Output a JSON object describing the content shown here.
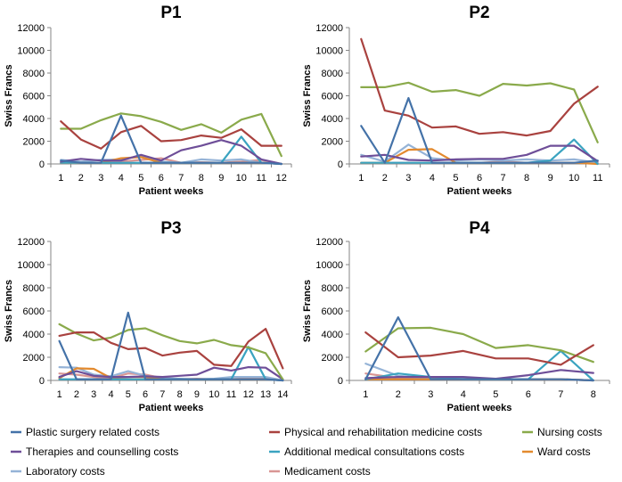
{
  "chart_data": {
    "type": "line",
    "ylabel": "Swiss Francs",
    "xlabel": "Patient weeks",
    "ylim": [
      0,
      12000
    ],
    "yticks": [
      "0",
      "2000",
      "4000",
      "6000",
      "8000",
      "10000",
      "12000"
    ],
    "grid": false,
    "legend_position": "bottom",
    "legend": [
      {
        "name": "Plastic surgery related costs",
        "color": "#4472A8"
      },
      {
        "name": "Physical and rehabilitation medicine costs",
        "color": "#A9423F"
      },
      {
        "name": "Nursing costs",
        "color": "#8AAA4B"
      },
      {
        "name": "Therapies and counselling costs",
        "color": "#6E4E98"
      },
      {
        "name": "Additional medical consultations costs",
        "color": "#3AA3C0"
      },
      {
        "name": "Ward costs",
        "color": "#E38A2E"
      },
      {
        "name": "Laboratory costs",
        "color": "#95B3D7"
      },
      {
        "name": "Medicament costs",
        "color": "#D99694"
      }
    ],
    "panels": [
      {
        "title": "P1",
        "x": [
          "1",
          "2",
          "3",
          "4",
          "5",
          "6",
          "7",
          "8",
          "9",
          "10",
          "11",
          "12"
        ],
        "series": [
          {
            "name": "Plastic surgery related costs",
            "values": [
              300,
              100,
              100,
              4250,
              100,
              100,
              100,
              100,
              100,
              100,
              100,
              0
            ]
          },
          {
            "name": "Physical and rehabilitation medicine costs",
            "values": [
              3750,
              2150,
              1350,
              2800,
              3350,
              2000,
              2100,
              2500,
              2300,
              3050,
              1600,
              1600
            ]
          },
          {
            "name": "Nursing costs",
            "values": [
              3100,
              3100,
              3850,
              4450,
              4200,
              3700,
              3000,
              3500,
              2750,
              3900,
              4400,
              700
            ]
          },
          {
            "name": "Therapies and counselling costs",
            "values": [
              200,
              450,
              300,
              300,
              800,
              300,
              1200,
              1600,
              2100,
              1600,
              400,
              0
            ]
          },
          {
            "name": "Additional medical consultations costs",
            "values": [
              100,
              100,
              100,
              100,
              100,
              100,
              100,
              100,
              100,
              2400,
              100,
              0
            ]
          },
          {
            "name": "Ward costs",
            "values": [
              100,
              100,
              100,
              500,
              600,
              100,
              100,
              100,
              100,
              100,
              100,
              0
            ]
          },
          {
            "name": "Laboratory costs",
            "values": [
              350,
              200,
              350,
              400,
              700,
              200,
              100,
              400,
              300,
              400,
              100,
              0
            ]
          },
          {
            "name": "Medicament costs",
            "values": [
              100,
              100,
              100,
              200,
              350,
              500,
              100,
              150,
              100,
              200,
              350,
              0
            ]
          }
        ]
      },
      {
        "title": "P2",
        "x": [
          "1",
          "2",
          "3",
          "4",
          "5",
          "6",
          "7",
          "8",
          "9",
          "10",
          "11"
        ],
        "series": [
          {
            "name": "Plastic surgery related costs",
            "values": [
              3350,
              100,
              5800,
              100,
              100,
              100,
              100,
              100,
              100,
              100,
              300
            ]
          },
          {
            "name": "Physical and rehabilitation medicine costs",
            "values": [
              11000,
              4700,
              4250,
              3200,
              3300,
              2650,
              2800,
              2500,
              2900,
              5300,
              6800
            ]
          },
          {
            "name": "Nursing costs",
            "values": [
              6750,
              6750,
              7150,
              6350,
              6500,
              6000,
              7050,
              6900,
              7100,
              6550,
              1900
            ]
          },
          {
            "name": "Therapies and counselling costs",
            "values": [
              650,
              800,
              350,
              300,
              400,
              450,
              450,
              800,
              1600,
              1600,
              250
            ]
          },
          {
            "name": "Additional medical consultations costs",
            "values": [
              100,
              100,
              100,
              100,
              100,
              100,
              100,
              100,
              300,
              2150,
              0
            ]
          },
          {
            "name": "Ward costs",
            "values": [
              100,
              100,
              1250,
              1300,
              100,
              100,
              100,
              100,
              100,
              100,
              0
            ]
          },
          {
            "name": "Laboratory costs",
            "values": [
              800,
              200,
              1700,
              500,
              300,
              400,
              300,
              400,
              300,
              400,
              100
            ]
          },
          {
            "name": "Medicament costs",
            "values": [
              100,
              100,
              100,
              100,
              100,
              100,
              200,
              100,
              100,
              100,
              100
            ]
          }
        ]
      },
      {
        "title": "P3",
        "x": [
          "1",
          "2",
          "3",
          "4",
          "5",
          "6",
          "7",
          "8",
          "9",
          "10",
          "11",
          "12",
          "13",
          "14"
        ],
        "series": [
          {
            "name": "Plastic surgery related costs",
            "values": [
              3400,
              100,
              100,
              100,
              5850,
              100,
              100,
              100,
              100,
              100,
              100,
              100,
              100,
              0
            ]
          },
          {
            "name": "Physical and rehabilitation medicine costs",
            "values": [
              3850,
              4150,
              4150,
              3250,
              2700,
              2800,
              2150,
              2400,
              2550,
              1350,
              1250,
              3350,
              4450,
              1050
            ]
          },
          {
            "name": "Nursing costs",
            "values": [
              4850,
              4050,
              3450,
              3700,
              4350,
              4500,
              3900,
              3400,
              3200,
              3500,
              3050,
              2850,
              2350,
              100
            ]
          },
          {
            "name": "Therapies and counselling costs",
            "values": [
              300,
              800,
              400,
              300,
              300,
              350,
              300,
              400,
              500,
              1100,
              850,
              1150,
              1100,
              100
            ]
          },
          {
            "name": "Additional medical consultations costs",
            "values": [
              100,
              100,
              100,
              100,
              100,
              100,
              100,
              100,
              100,
              100,
              100,
              2900,
              100,
              0
            ]
          },
          {
            "name": "Ward costs",
            "values": [
              200,
              1050,
              1000,
              200,
              300,
              300,
              100,
              100,
              100,
              100,
              100,
              100,
              100,
              0
            ]
          },
          {
            "name": "Laboratory costs",
            "values": [
              1150,
              1100,
              500,
              350,
              800,
              400,
              200,
              150,
              100,
              150,
              300,
              300,
              300,
              0
            ]
          },
          {
            "name": "Medicament costs",
            "values": [
              600,
              500,
              300,
              200,
              600,
              500,
              200,
              100,
              150,
              100,
              100,
              200,
              200,
              0
            ]
          }
        ]
      },
      {
        "title": "P4",
        "x": [
          "1",
          "2",
          "3",
          "4",
          "5",
          "6",
          "7",
          "8"
        ],
        "series": [
          {
            "name": "Plastic surgery related costs",
            "values": [
              100,
              5450,
              100,
              100,
              100,
              100,
              100,
              0
            ]
          },
          {
            "name": "Physical and rehabilitation medicine costs",
            "values": [
              4150,
              2000,
              2150,
              2550,
              1900,
              1900,
              1350,
              3050
            ]
          },
          {
            "name": "Nursing costs",
            "values": [
              2500,
              4500,
              4550,
              4000,
              2800,
              3050,
              2600,
              1600
            ]
          },
          {
            "name": "Therapies and counselling costs",
            "values": [
              200,
              300,
              300,
              300,
              150,
              450,
              900,
              650
            ]
          },
          {
            "name": "Additional medical consultations costs",
            "values": [
              100,
              600,
              300,
              100,
              100,
              100,
              2550,
              0
            ]
          },
          {
            "name": "Ward costs",
            "values": [
              100,
              100,
              100,
              100,
              100,
              100,
              100,
              0
            ]
          },
          {
            "name": "Laboratory costs",
            "values": [
              1450,
              400,
              200,
              200,
              100,
              100,
              100,
              0
            ]
          },
          {
            "name": "Medicament costs",
            "values": [
              600,
              200,
              200,
              100,
              100,
              100,
              100,
              0
            ]
          }
        ]
      }
    ]
  }
}
